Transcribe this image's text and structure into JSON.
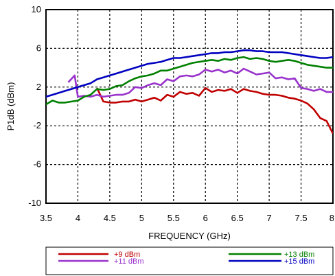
{
  "chart_data": {
    "type": "line",
    "xlabel": "FREQUENCY (GHz)",
    "ylabel": "P1dB (dBm)",
    "xlim": [
      3.5,
      8
    ],
    "ylim": [
      -10,
      10
    ],
    "x_ticks": [
      "3.5",
      "4",
      "4.5",
      "5",
      "5.5",
      "6",
      "6.5",
      "7",
      "7.5",
      "8"
    ],
    "y_ticks": [
      "10",
      "6",
      "2",
      "-2",
      "-6",
      "-10"
    ],
    "grid": true,
    "legend_position": "bottom",
    "series": [
      {
        "name": "+9 dBm",
        "color": "#c00000",
        "x": [
          4.3,
          4.35,
          4.4,
          4.5,
          4.6,
          4.7,
          4.8,
          4.9,
          5.0,
          5.1,
          5.2,
          5.3,
          5.4,
          5.5,
          5.6,
          5.7,
          5.8,
          5.9,
          6.0,
          6.1,
          6.2,
          6.3,
          6.4,
          6.5,
          6.6,
          6.7,
          6.8,
          6.9,
          7.0,
          7.1,
          7.2,
          7.3,
          7.4,
          7.5,
          7.6,
          7.7,
          7.8,
          7.9,
          8.0
        ],
        "y": [
          1.9,
          1.2,
          0.5,
          0.4,
          0.4,
          0.5,
          0.5,
          0.7,
          0.5,
          0.7,
          0.9,
          0.6,
          1.2,
          1.0,
          1.5,
          1.3,
          1.4,
          1.1,
          1.9,
          1.5,
          1.7,
          1.6,
          1.8,
          1.4,
          1.8,
          1.6,
          1.5,
          1.3,
          1.2,
          1.2,
          1.1,
          0.9,
          0.8,
          0.6,
          0.3,
          -0.3,
          -1.2,
          -1.5,
          -2.8
        ]
      },
      {
        "name": "+11 dBm",
        "color": "#9933cc",
        "x": [
          3.85,
          3.95,
          4.0,
          4.1,
          4.2,
          4.3,
          4.4,
          4.5,
          4.6,
          4.7,
          4.8,
          4.9,
          5.0,
          5.1,
          5.2,
          5.3,
          5.4,
          5.5,
          5.6,
          5.7,
          5.8,
          5.9,
          6.0,
          6.1,
          6.2,
          6.3,
          6.4,
          6.5,
          6.6,
          6.7,
          6.8,
          6.9,
          7.0,
          7.1,
          7.2,
          7.3,
          7.4,
          7.5,
          7.6,
          7.7,
          7.8,
          7.9,
          8.0
        ],
        "y": [
          2.5,
          3.2,
          1.0,
          1.1,
          1.0,
          1.2,
          1.0,
          1.1,
          1.2,
          1.2,
          1.4,
          2.0,
          1.9,
          2.2,
          2.4,
          2.2,
          2.8,
          2.6,
          3.1,
          3.2,
          3.1,
          3.3,
          3.8,
          3.6,
          3.8,
          3.5,
          3.7,
          3.4,
          3.9,
          3.6,
          3.3,
          3.4,
          3.5,
          2.9,
          3.0,
          2.8,
          2.9,
          1.9,
          1.8,
          1.6,
          1.8,
          1.5,
          1.5
        ]
      },
      {
        "name": "+13 dBm",
        "color": "#008000",
        "x": [
          3.5,
          3.6,
          3.7,
          3.8,
          3.9,
          4.0,
          4.1,
          4.2,
          4.3,
          4.4,
          4.5,
          4.6,
          4.7,
          4.8,
          4.9,
          5.0,
          5.1,
          5.2,
          5.3,
          5.4,
          5.5,
          5.6,
          5.7,
          5.8,
          5.9,
          6.0,
          6.1,
          6.2,
          6.3,
          6.4,
          6.5,
          6.6,
          6.7,
          6.8,
          6.9,
          7.0,
          7.1,
          7.2,
          7.3,
          7.4,
          7.5,
          7.6,
          7.7,
          7.8,
          7.9,
          8.0
        ],
        "y": [
          0.2,
          0.6,
          0.4,
          0.4,
          0.5,
          0.6,
          1.0,
          1.2,
          1.8,
          1.7,
          1.8,
          2.1,
          2.2,
          2.6,
          2.9,
          3.1,
          3.2,
          3.4,
          3.7,
          3.7,
          3.9,
          4.1,
          4.3,
          4.5,
          4.6,
          4.7,
          4.8,
          4.7,
          4.9,
          4.8,
          5.0,
          5.1,
          4.9,
          5.0,
          4.9,
          4.7,
          4.6,
          4.7,
          4.8,
          4.7,
          4.5,
          4.3,
          4.2,
          4.1,
          4.0,
          4.0
        ]
      },
      {
        "name": "+15 dBm",
        "color": "#0000c0",
        "x": [
          3.5,
          3.6,
          3.7,
          3.8,
          3.9,
          4.0,
          4.1,
          4.2,
          4.3,
          4.4,
          4.5,
          4.6,
          4.7,
          4.8,
          4.9,
          5.0,
          5.1,
          5.2,
          5.3,
          5.4,
          5.5,
          5.6,
          5.7,
          5.8,
          5.9,
          6.0,
          6.1,
          6.2,
          6.3,
          6.4,
          6.5,
          6.6,
          6.7,
          6.8,
          6.9,
          7.0,
          7.1,
          7.2,
          7.3,
          7.4,
          7.5,
          7.6,
          7.7,
          7.8,
          7.9,
          8.0
        ],
        "y": [
          1.0,
          1.2,
          1.4,
          1.6,
          1.8,
          2.0,
          2.2,
          2.4,
          2.8,
          3.0,
          3.2,
          3.4,
          3.6,
          3.8,
          4.0,
          4.2,
          4.4,
          4.5,
          4.6,
          4.8,
          5.0,
          5.0,
          5.1,
          5.2,
          5.3,
          5.4,
          5.5,
          5.5,
          5.6,
          5.6,
          5.7,
          5.8,
          5.8,
          5.7,
          5.7,
          5.6,
          5.6,
          5.6,
          5.5,
          5.4,
          5.3,
          5.2,
          5.1,
          5.0,
          5.0,
          5.1
        ]
      }
    ]
  }
}
